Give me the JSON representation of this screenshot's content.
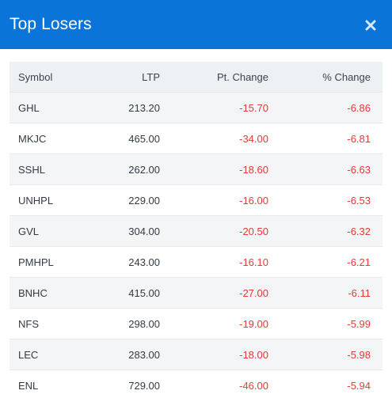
{
  "modal": {
    "title": "Top Losers"
  },
  "colors": {
    "header_bg": "#0a74d8",
    "negative": "#e53935"
  },
  "table": {
    "columns": [
      "Symbol",
      "LTP",
      "Pt. Change",
      "% Change"
    ],
    "rows": [
      {
        "symbol": "GHL",
        "ltp": "213.20",
        "pt_change": "-15.70",
        "pct_change": "-6.86"
      },
      {
        "symbol": "MKJC",
        "ltp": "465.00",
        "pt_change": "-34.00",
        "pct_change": "-6.81"
      },
      {
        "symbol": "SSHL",
        "ltp": "262.00",
        "pt_change": "-18.60",
        "pct_change": "-6.63"
      },
      {
        "symbol": "UNHPL",
        "ltp": "229.00",
        "pt_change": "-16.00",
        "pct_change": "-6.53"
      },
      {
        "symbol": "GVL",
        "ltp": "304.00",
        "pt_change": "-20.50",
        "pct_change": "-6.32"
      },
      {
        "symbol": "PMHPL",
        "ltp": "243.00",
        "pt_change": "-16.10",
        "pct_change": "-6.21"
      },
      {
        "symbol": "BNHC",
        "ltp": "415.00",
        "pt_change": "-27.00",
        "pct_change": "-6.11"
      },
      {
        "symbol": "NFS",
        "ltp": "298.00",
        "pt_change": "-19.00",
        "pct_change": "-5.99"
      },
      {
        "symbol": "LEC",
        "ltp": "283.00",
        "pt_change": "-18.00",
        "pct_change": "-5.98"
      },
      {
        "symbol": "ENL",
        "ltp": "729.00",
        "pt_change": "-46.00",
        "pct_change": "-5.94"
      }
    ]
  }
}
